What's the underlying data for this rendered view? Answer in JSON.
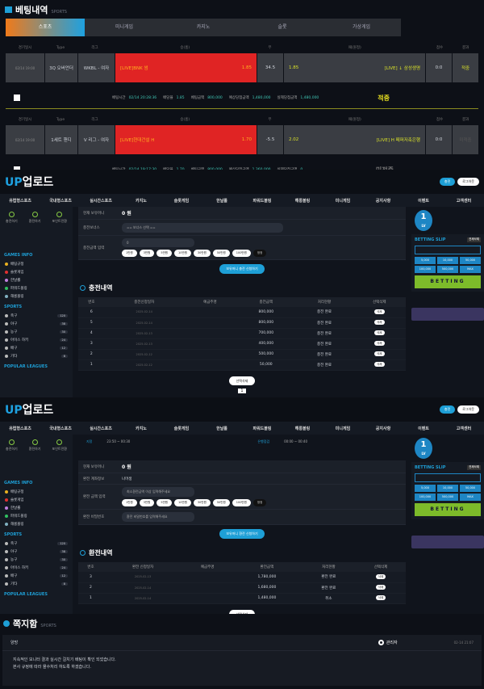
{
  "history": {
    "title": "베팅내역",
    "subtitle": "SPORTS",
    "tabs": [
      "스포츠",
      "미니게임",
      "카지노",
      "슬롯",
      "가상게임"
    ],
    "headers": [
      "경기일시",
      "Type",
      "리그",
      "승(홈)",
      "무",
      "패(원정)",
      "점수",
      "결과"
    ],
    "footer_labels": {
      "time": "베팅시간",
      "odds": "배당율",
      "amount": "베팅금액",
      "expected": "예상당첨금액",
      "actual": "실제당첨금액"
    },
    "bets": [
      {
        "date": "02/14 19:00",
        "type": "3Q 오버언더",
        "league": "WKBL - 여자",
        "home": "[LIVE]BNK 썸",
        "home_odds": "1.85",
        "mid": "34.5",
        "away_odds": "1.85",
        "away": "[LIVE] ↓ 삼성생명",
        "score": "0:0",
        "result": "적중",
        "time": "02/14 20:28:36",
        "odds": "1.85",
        "amount": "800,000",
        "expected": "1,480,000",
        "actual": "1,480,000",
        "status": "적중"
      },
      {
        "date": "02/14 19:00",
        "type": "1세트 핸디",
        "league": "V 리그 - 여자",
        "home": "[LIVE]현대건설 H",
        "home_odds": "1.70",
        "mid": "-5.5",
        "away_odds": "2.02",
        "away": "[LIVE] H 페퍼저축은행",
        "score": "0:0",
        "result": "미적중",
        "time": "02/14 19:17:30",
        "odds": "1.70",
        "amount": "800,000",
        "expected": "1,360,000",
        "actual": "0",
        "status": "미적중"
      }
    ]
  },
  "site": {
    "logo": "UP",
    "logo_text": "업로드",
    "nav": [
      "유럽형스포츠",
      "국내형스포츠",
      "실시간스포츠",
      "카지노",
      "슬롯게임",
      "한날롤",
      "파워드볼링",
      "해롱볼링",
      "미니게임",
      "공지사항",
      "이벤트",
      "고객센터"
    ],
    "header_buttons": [
      "충전",
      "로그아웃"
    ],
    "quick": [
      "충전하기",
      "환전하기",
      "포인트전환"
    ],
    "games_info_title": "GAMES INFO",
    "games_info": [
      "배팅규정",
      "슬롯게임",
      "한날롤",
      "파워드볼링",
      "해롱볼링"
    ],
    "sports_title": "SPORTS",
    "sports": [
      {
        "name": "축구",
        "count": "120"
      },
      {
        "name": "야구",
        "count": "38"
      },
      {
        "name": "농구",
        "count": "30"
      },
      {
        "name": "아이스 하키",
        "count": "24"
      },
      {
        "name": "배구",
        "count": "12"
      },
      {
        "name": "기타",
        "count": "8"
      }
    ],
    "popular_title": "POPULAR LEAGUES",
    "level": "1",
    "level_label": "LV",
    "slip_title": "BETTING SLIP",
    "slip_clear": "전체삭제",
    "slip_amounts": [
      "5,000",
      "10,000",
      "50,000",
      "100,000",
      "500,000",
      "MAX"
    ],
    "bet_label": "BETTING",
    "amount_buttons": [
      "1만원",
      "3만원",
      "5만원",
      "10만원",
      "30만원",
      "50만원",
      "100만원",
      "정정"
    ],
    "delete_label": "삭제",
    "select_delete": "선택삭제"
  },
  "deposit": {
    "money_label": "현재 보유머니",
    "money": "0 원",
    "bonus_label": "충전보너스",
    "bonus_select": "== 보너스 선택 ==",
    "amount_label": "충전금액 입력",
    "amount_value": "0",
    "submit": "보유머니 충전 신청하기",
    "list_title": "충전내역",
    "headers": [
      "번호",
      "충전신청일자",
      "예금주명",
      "충전금액",
      "처리현황",
      "선택삭제"
    ],
    "rows": [
      [
        "6",
        "2025-02-14",
        "",
        "800,000",
        "충전 완료"
      ],
      [
        "5",
        "2025-02-14",
        "",
        "800,000",
        "충전 완료"
      ],
      [
        "4",
        "2025-02-13",
        "",
        "700,000",
        "충전 완료"
      ],
      [
        "3",
        "2025-02-13",
        "",
        "400,000",
        "충전 완료"
      ],
      [
        "2",
        "2025-02-12",
        "",
        "500,000",
        "충전 완료"
      ],
      [
        "1",
        "2025-02-12",
        "",
        "50,000",
        "충전 완료"
      ]
    ],
    "page": "1"
  },
  "withdraw": {
    "time1_label": "지정",
    "time1": "23:50 ~ 00:30",
    "time2_label": "은행점검",
    "time2": "00:00 ~ 00:40",
    "money_label": "현재 보유머니",
    "money": "0 원",
    "bank_label": "환전 계좌정보",
    "bank": "나머생",
    "amount_label": "환전 금액 입력",
    "amount_placeholder": "최소환전금액 이상 입력해주세요",
    "pw_label": "환전 비밀번호",
    "pw_placeholder": "환전 비밀번호를 입력해주세요",
    "submit": "보유머니 환전 신청하기",
    "list_title": "환전내역",
    "headers": [
      "번호",
      "환전 신청일자",
      "예금주명",
      "환전금액",
      "처리현황",
      "선택삭제"
    ],
    "rows": [
      [
        "3",
        "2025-02-13",
        "",
        "1,780,000",
        "환전 완료"
      ],
      [
        "2",
        "2025-02-14",
        "",
        "1,680,000",
        "환전 완료"
      ],
      [
        "1",
        "2025-02-14",
        "",
        "1,480,000",
        "취소"
      ]
    ]
  },
  "message": {
    "title": "쪽지함",
    "subtitle": "SPORTS",
    "subject": "양방",
    "sender": "관리자",
    "date": "02-14 21:07",
    "body": [
      "지속적인 모니터 결과 실시간 걸치기 배팅이 확인 되었습니다.",
      "본사 규정에 따라 몰수처리 하도록 하겠습니다."
    ]
  }
}
